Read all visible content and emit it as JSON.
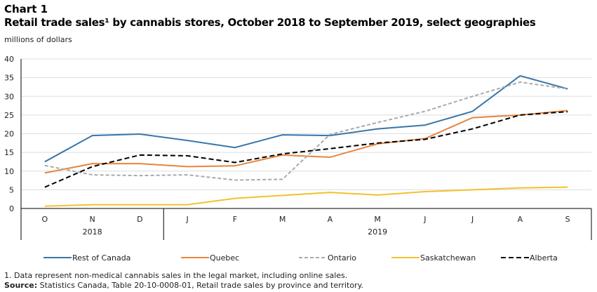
{
  "header": {
    "chart_label": "Chart 1",
    "title": "Retail trade sales¹ by cannabis stores, October 2018 to September 2019, select geographies",
    "units": "millions of dollars"
  },
  "footer": {
    "note": "1. Data represent non-medical cannabis sales in the legal market, including online sales.",
    "source_label": "Source:",
    "source_text": " Statistics Canada, Table 20-10-0008-01, Retail trade sales by province and territory."
  },
  "chart_data": {
    "type": "line",
    "title": "Retail trade sales¹ by cannabis stores, October 2018 to September 2019, select geographies",
    "ylabel": "millions of dollars",
    "ylim": [
      0,
      40
    ],
    "yticks": [
      0,
      5,
      10,
      15,
      20,
      25,
      30,
      35,
      40
    ],
    "grid": true,
    "legend": "bottom",
    "categories": [
      "O",
      "N",
      "D",
      "J",
      "F",
      "M",
      "A",
      "M",
      "J",
      "J",
      "A",
      "S"
    ],
    "years": [
      {
        "label": "2018",
        "span": 3
      },
      {
        "label": "2019",
        "span": 9
      }
    ],
    "series": [
      {
        "name": "Rest of Canada",
        "color": "#3a76a8",
        "dash": "",
        "values": [
          12.5,
          19.5,
          19.9,
          18.2,
          16.3,
          19.7,
          19.5,
          21.3,
          22.3,
          26.0,
          35.5,
          32.0
        ]
      },
      {
        "name": "Quebec",
        "color": "#e8853d",
        "dash": "",
        "values": [
          9.5,
          12.0,
          12.0,
          11.2,
          11.4,
          14.3,
          13.7,
          17.3,
          18.7,
          24.3,
          25.0,
          26.2
        ]
      },
      {
        "name": "Ontario",
        "color": "#aaaaaa",
        "dash": "5,3",
        "values": [
          11.5,
          9.0,
          8.8,
          9.0,
          7.6,
          7.8,
          19.8,
          23.0,
          26.0,
          30.0,
          33.8,
          32.0
        ]
      },
      {
        "name": "Saskatchewan",
        "color": "#f2c12e",
        "dash": "",
        "values": [
          0.6,
          1.0,
          1.0,
          1.0,
          2.7,
          3.5,
          4.3,
          3.6,
          4.5,
          5.0,
          5.5,
          5.7
        ]
      },
      {
        "name": "Alberta",
        "color": "#000000",
        "dash": "7,4",
        "values": [
          5.7,
          11.2,
          14.3,
          14.1,
          12.3,
          14.6,
          16.0,
          17.5,
          18.5,
          21.3,
          25.0,
          25.9
        ]
      }
    ]
  }
}
